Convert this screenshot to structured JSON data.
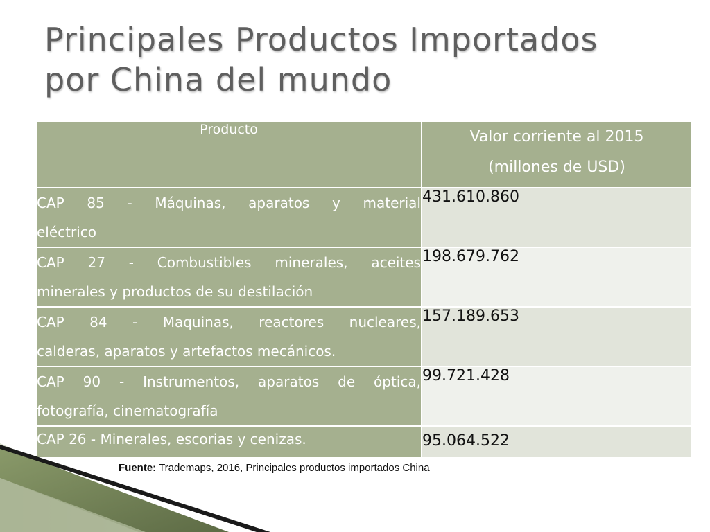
{
  "title": {
    "line1": "Principales Productos Importados",
    "line2": "por China del mundo"
  },
  "table": {
    "headers": {
      "product": "Producto",
      "value_line1": "Valor corriente al 2015",
      "value_line2": "(millones de USD)"
    },
    "rows": [
      {
        "product_line1": "CAP 85 - Máquinas, aparatos y material",
        "product_line2": "eléctrico",
        "value": "431.610.860"
      },
      {
        "product_line1": "CAP 27 - Combustibles minerales, aceites",
        "product_line2": "minerales y productos de su destilación",
        "value": "198.679.762"
      },
      {
        "product_line1": "CAP 84 - Maquinas, reactores nucleares,",
        "product_line2": "calderas, aparatos y artefactos mecánicos.",
        "value": "157.189.653"
      },
      {
        "product_line1": "CAP 90 - Instrumentos, aparatos de óptica,",
        "product_line2": "fotografía, cinematografía",
        "value": "99.721.428"
      },
      {
        "product_line1": "CAP 26 - Minerales, escorias y cenizas.",
        "product_line2": "",
        "value": "95.064.522"
      }
    ]
  },
  "source": {
    "label": "Fuente:",
    "text": " Trademaps, 2016, Principales productos importados China"
  },
  "colors": {
    "header_bg": "#a5b08f",
    "value_dark": "#e1e4da",
    "value_light": "#eff1ec",
    "title": "#5f5f5f"
  }
}
